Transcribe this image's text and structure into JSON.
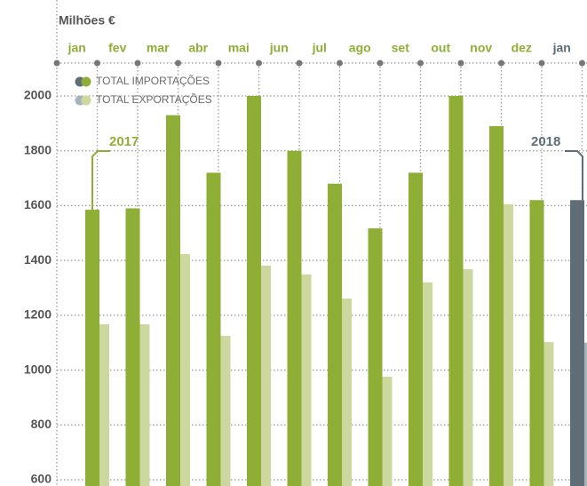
{
  "chart_data": {
    "type": "bar",
    "y_label": "Milhões €",
    "categories": [
      "jan",
      "fev",
      "mar",
      "abr",
      "mai",
      "jun",
      "jul",
      "ago",
      "set",
      "out",
      "nov",
      "dez",
      "jan"
    ],
    "series": [
      {
        "name": "TOTAL IMPORTAÇÕES",
        "color": "#8fae36",
        "colors": [
          "#8fae36",
          "#8fae36",
          "#8fae36",
          "#8fae36",
          "#8fae36",
          "#8fae36",
          "#8fae36",
          "#8fae36",
          "#8fae36",
          "#8fae36",
          "#8fae36",
          "#8fae36",
          "#5f6d77"
        ],
        "values": [
          1585,
          1590,
          1930,
          1720,
          2000,
          1800,
          1680,
          1517,
          1720,
          2000,
          1890,
          1620,
          1620
        ]
      },
      {
        "name": "TOTAL EXPORTAÇÕES",
        "color": "#ccd89d",
        "colors": [
          "#ccd89d",
          "#ccd89d",
          "#ccd89d",
          "#ccd89d",
          "#ccd89d",
          "#ccd89d",
          "#ccd89d",
          "#ccd89d",
          "#ccd89d",
          "#ccd89d",
          "#ccd89d",
          "#ccd89d",
          "#a9b3ba"
        ],
        "values": [
          1167,
          1167,
          1423,
          1125,
          1381,
          1349,
          1261,
          976,
          1320,
          1368,
          1605,
          1102,
          1100
        ]
      }
    ],
    "annotations": [
      "2017",
      "2018"
    ],
    "ylim": [
      600,
      2000
    ],
    "yticks": [
      600,
      800,
      1000,
      1200,
      1400,
      1600,
      1800,
      2000
    ],
    "grid": true
  }
}
